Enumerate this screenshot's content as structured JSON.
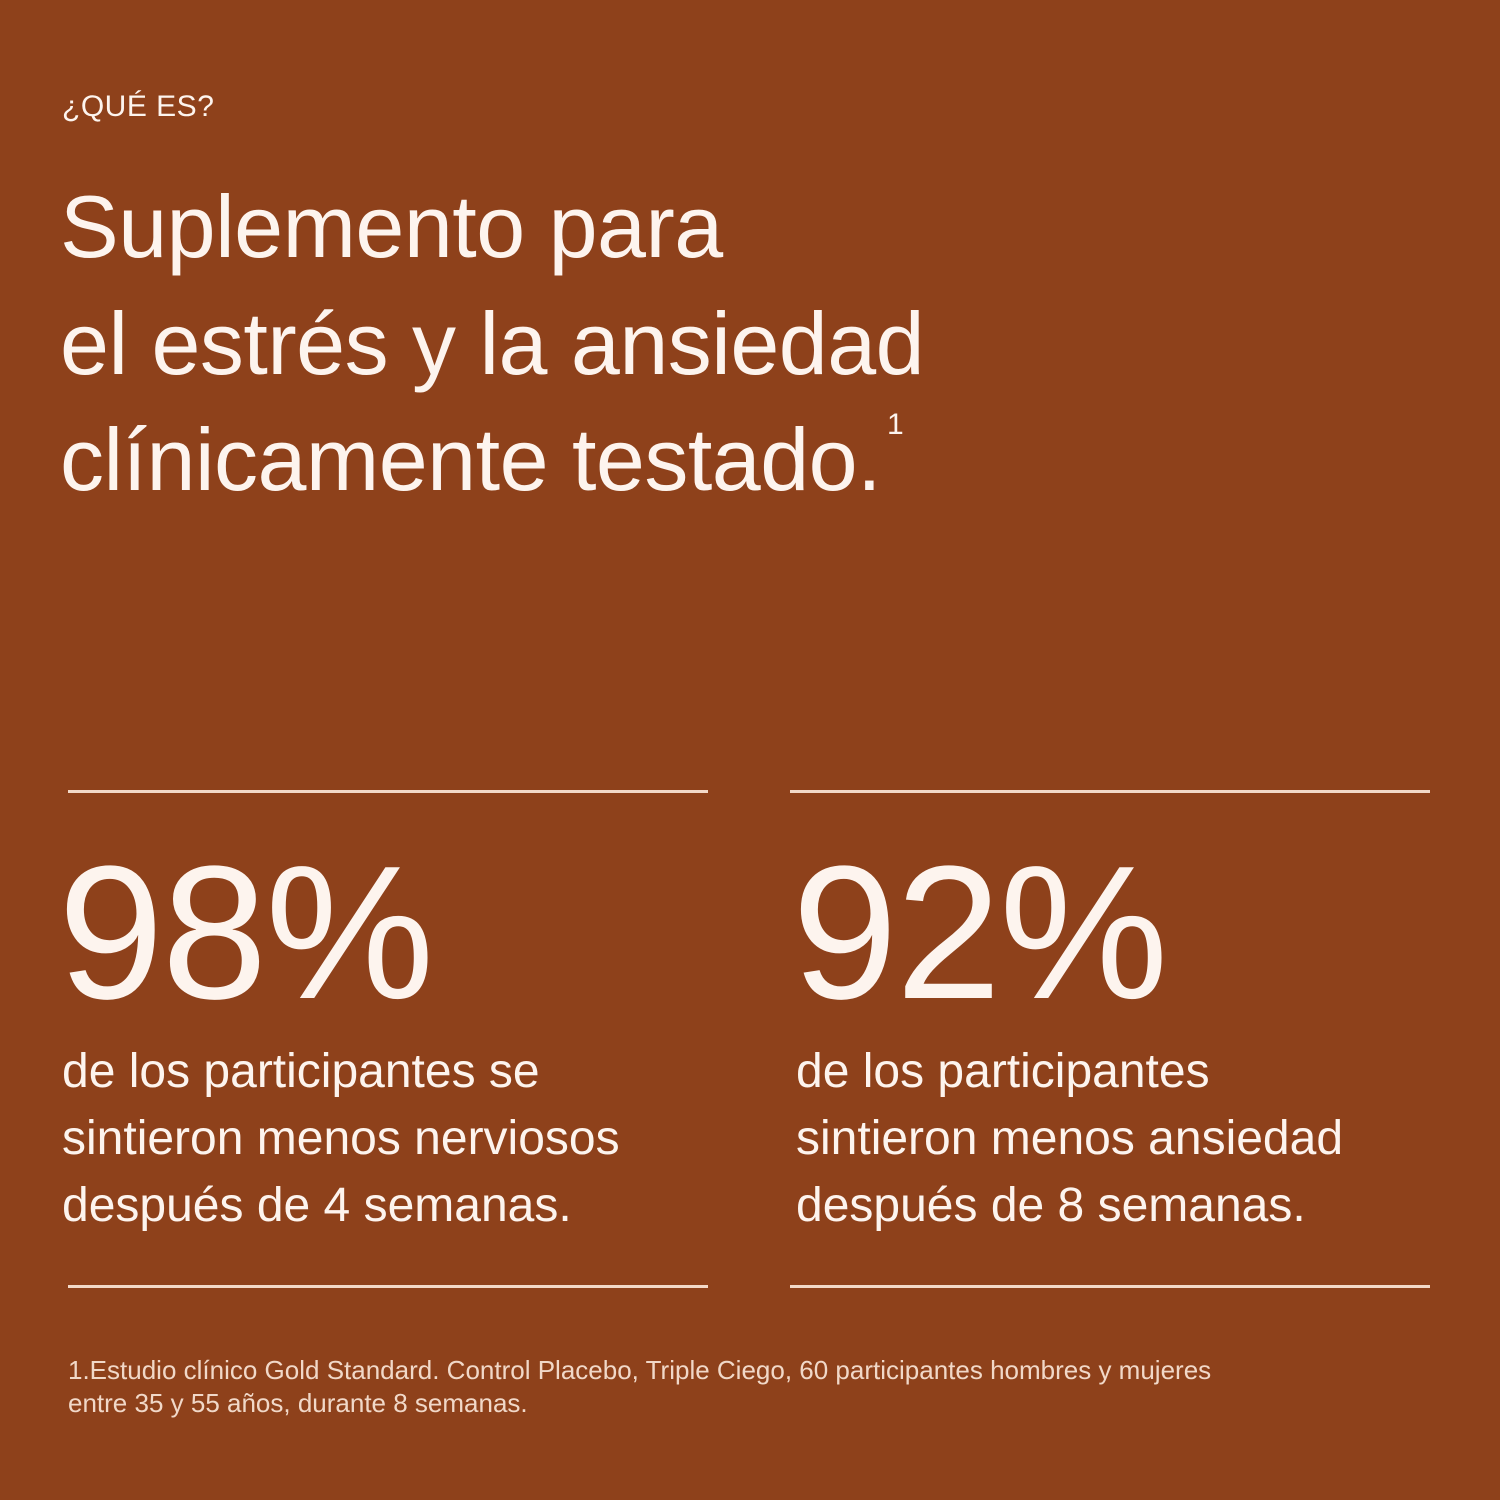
{
  "header": {
    "eyebrow": "¿QUÉ ES?",
    "title_lines": [
      "Suplemento para",
      "el estrés y la ansiedad",
      "clínicamente testado."
    ],
    "footnote_marker": "1"
  },
  "stats": [
    {
      "figure": "98%",
      "description_lines": [
        "de los participantes se",
        "sintieron menos nerviosos",
        "después de 4 semanas."
      ]
    },
    {
      "figure": "92%",
      "description_lines": [
        "de los participantes",
        "sintieron menos ansiedad",
        "después de 8 semanas."
      ]
    }
  ],
  "footnote": {
    "lines": [
      "1.Estudio clínico Gold Standard. Control Placebo, Triple Ciego, 60 participantes hombres y mujeres",
      "entre 35 y 55 años, durante 8 semanas."
    ]
  }
}
